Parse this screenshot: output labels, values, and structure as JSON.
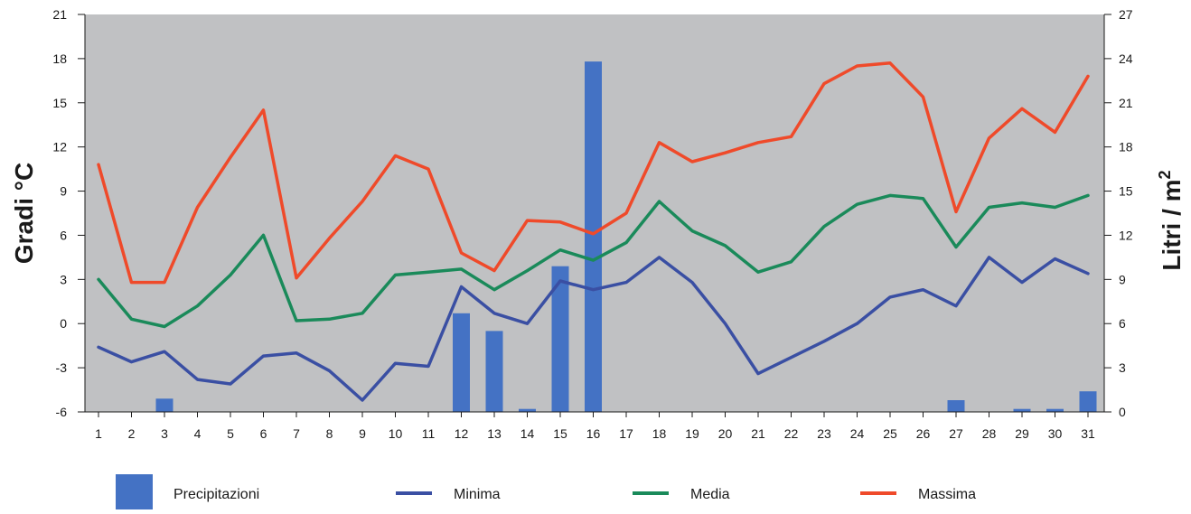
{
  "chart_data": {
    "type": "bar+line",
    "x": [
      "1",
      "2",
      "3",
      "4",
      "5",
      "6",
      "7",
      "8",
      "9",
      "10",
      "11",
      "12",
      "13",
      "14",
      "15",
      "16",
      "17",
      "18",
      "19",
      "20",
      "21",
      "22",
      "23",
      "24",
      "25",
      "26",
      "27",
      "28",
      "29",
      "30",
      "31"
    ],
    "ylabel_left": "Gradi °C",
    "ylabel_right_main": "Litri / m",
    "ylabel_right_sup": "2",
    "ylim_left": [
      -6,
      21
    ],
    "yticks_left": [
      "21",
      "18",
      "15",
      "12",
      "9",
      "6",
      "3",
      "0",
      "-3",
      "-6"
    ],
    "ylim_right": [
      0,
      27
    ],
    "yticks_right": [
      "27",
      "24",
      "21",
      "18",
      "15",
      "12",
      "9",
      "6",
      "3",
      "0"
    ],
    "grid": false,
    "plot_background": "#c0c1c3",
    "legend_position": "bottom",
    "bars": {
      "name": "Precipitazioni",
      "axis": "right",
      "color": "#4472c4",
      "values": [
        0,
        0,
        0.9,
        0,
        0,
        0,
        0,
        0,
        0,
        0,
        0,
        6.7,
        5.5,
        0.2,
        9.9,
        23.8,
        0,
        0,
        0,
        0,
        0,
        0,
        0,
        0,
        0,
        0,
        0.8,
        0,
        0.2,
        0.2,
        1.4
      ]
    },
    "series": [
      {
        "name": "Minima",
        "axis": "left",
        "color": "#3a4fa3",
        "values": [
          -1.6,
          -2.6,
          -1.9,
          -3.8,
          -4.1,
          -2.2,
          -2.0,
          -3.2,
          -5.2,
          -2.7,
          -2.9,
          2.5,
          0.7,
          0.0,
          2.9,
          2.3,
          2.8,
          4.5,
          2.8,
          0.0,
          -3.4,
          -2.3,
          -1.2,
          0.0,
          1.8,
          2.3,
          1.2,
          4.5,
          2.8,
          4.4,
          3.4
        ]
      },
      {
        "name": "Media",
        "axis": "left",
        "color": "#1a8a5a",
        "values": [
          3.0,
          0.3,
          -0.2,
          1.2,
          3.3,
          6.0,
          0.2,
          0.3,
          0.7,
          3.3,
          3.5,
          3.7,
          2.3,
          3.6,
          5.0,
          4.3,
          5.5,
          8.3,
          6.3,
          5.3,
          3.5,
          4.2,
          6.6,
          8.1,
          8.7,
          8.5,
          5.2,
          7.9,
          8.2,
          7.9,
          8.7
        ]
      },
      {
        "name": "Massima",
        "axis": "left",
        "color": "#ef4a2a",
        "values": [
          10.8,
          2.8,
          2.8,
          7.9,
          11.3,
          14.5,
          3.1,
          5.8,
          8.3,
          11.4,
          10.5,
          4.8,
          3.6,
          7.0,
          6.9,
          6.1,
          7.5,
          12.3,
          11.0,
          11.6,
          12.3,
          12.7,
          16.3,
          17.5,
          17.7,
          15.4,
          7.6,
          12.6,
          14.6,
          13.0,
          16.8
        ]
      }
    ]
  },
  "legend": {
    "items": [
      {
        "label": "Precipitazioni",
        "kind": "box",
        "color": "#4472c4"
      },
      {
        "label": "Minima",
        "kind": "line",
        "color": "#3a4fa3"
      },
      {
        "label": "Media",
        "kind": "line",
        "color": "#1a8a5a"
      },
      {
        "label": "Massima",
        "kind": "line",
        "color": "#ef4a2a"
      }
    ]
  }
}
